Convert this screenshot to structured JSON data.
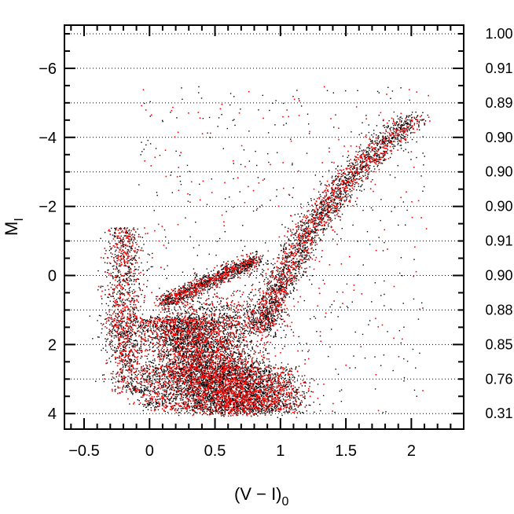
{
  "chart_data": {
    "type": "scatter",
    "title": "",
    "xlabel": {
      "main": "(V − I)",
      "sub": "0"
    },
    "ylabel": {
      "main": "M",
      "sub": "I"
    },
    "xlim": [
      -0.65,
      2.4
    ],
    "ylim": [
      4.45,
      -7.25
    ],
    "y_inverted": true,
    "x_ticks": [
      -0.5,
      0,
      0.5,
      1,
      1.5,
      2
    ],
    "x_tick_labels": [
      "−0.5",
      "0",
      "0.5",
      "1",
      "1.5",
      "2"
    ],
    "y_ticks": [
      -6,
      -4,
      -2,
      0,
      2,
      4
    ],
    "y_tick_labels": [
      "−6",
      "−4",
      "−2",
      "0",
      "2",
      "4"
    ],
    "grid": "horizontal dotted lines at each 1 mag",
    "right_axis_values": [
      {
        "M": -7.0,
        "label": "1.00"
      },
      {
        "M": -6.0,
        "label": "0.91"
      },
      {
        "M": -5.0,
        "label": "0.89"
      },
      {
        "M": -4.0,
        "label": "0.90"
      },
      {
        "M": -3.0,
        "label": "0.90"
      },
      {
        "M": -2.0,
        "label": "0.90"
      },
      {
        "M": -1.0,
        "label": "0.91"
      },
      {
        "M": 0.0,
        "label": "0.90"
      },
      {
        "M": 1.0,
        "label": "0.88"
      },
      {
        "M": 2.0,
        "label": "0.85"
      },
      {
        "M": 3.0,
        "label": "0.76"
      },
      {
        "M": 4.0,
        "label": "0.31"
      }
    ],
    "series": [
      {
        "color": "#000000",
        "representation": "dense point cloud (color-magnitude diagram)"
      },
      {
        "color": "#ff0000",
        "representation": "dense point cloud overlaid on black"
      }
    ]
  },
  "colors": {
    "black_points": "#000000",
    "red_points": "#ff0000",
    "grid": "#000000"
  }
}
